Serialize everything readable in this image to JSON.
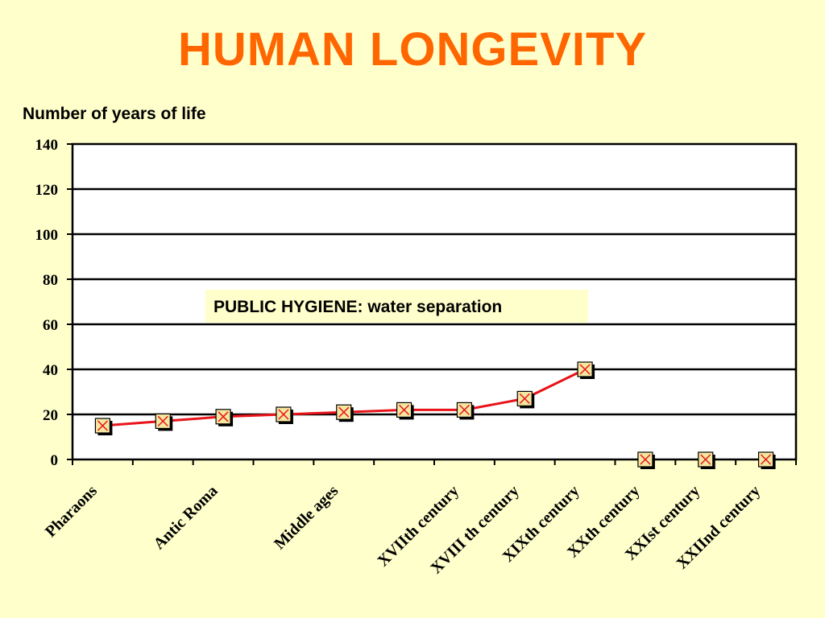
{
  "title": "HUMAN LONGEVITY",
  "colors": {
    "background": "#ffffcc",
    "title": "#ff6600",
    "line": "#e8141a",
    "marker_fill": "#f5e6a0",
    "plot_area": "#ffffff"
  },
  "chart_data": {
    "type": "line",
    "title": "HUMAN LONGEVITY",
    "ylabel": "Number of years of life",
    "xlabel": "",
    "ylim": [
      0,
      140
    ],
    "yticks": [
      0,
      20,
      40,
      60,
      80,
      100,
      120,
      140
    ],
    "grid": true,
    "categories": [
      "Pharaons",
      "",
      "Antic Roma",
      "",
      "Middle ages",
      "",
      "XVIIth century",
      "XVIII th century",
      "XIXth century",
      "XXth century",
      "XXIst century",
      "XXIInd century"
    ],
    "series": [
      {
        "values": [
          15,
          17,
          19,
          20,
          21,
          22,
          22,
          27,
          40,
          0,
          0,
          0
        ],
        "connected_points": 9
      }
    ],
    "annotations": [
      "PUBLIC HYGIENE: water separation"
    ]
  }
}
